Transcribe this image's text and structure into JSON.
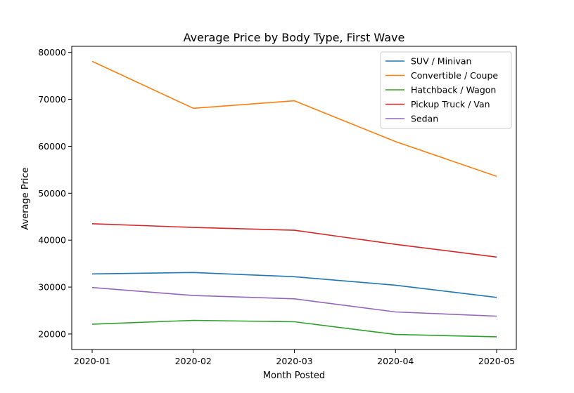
{
  "chart_data": {
    "type": "line",
    "title": "Average Price by Body Type, First Wave",
    "xlabel": "Month Posted",
    "ylabel": "Average Price",
    "categories": [
      "2020-01",
      "2020-02",
      "2020-03",
      "2020-04",
      "2020-05"
    ],
    "yticks": [
      "20000",
      "30000",
      "40000",
      "50000",
      "60000",
      "70000",
      "80000"
    ],
    "ylim": [
      16700,
      81300
    ],
    "grid": false,
    "legend_position": "top-right",
    "series": [
      {
        "name": "SUV / Minivan",
        "color": "#1f77b4",
        "values": [
          32800,
          33100,
          32200,
          30400,
          27800
        ]
      },
      {
        "name": "Convertible / Coupe",
        "color": "#ff7f0e",
        "values": [
          78100,
          68100,
          69700,
          61000,
          53600
        ]
      },
      {
        "name": "Hatchback / Wagon",
        "color": "#2ca02c",
        "values": [
          22100,
          22900,
          22600,
          19900,
          19400
        ]
      },
      {
        "name": "Pickup Truck / Van",
        "color": "#d62728",
        "values": [
          43500,
          42700,
          42100,
          39100,
          36400
        ]
      },
      {
        "name": "Sedan",
        "color": "#9467bd",
        "values": [
          29900,
          28200,
          27500,
          24700,
          23800
        ]
      }
    ]
  }
}
